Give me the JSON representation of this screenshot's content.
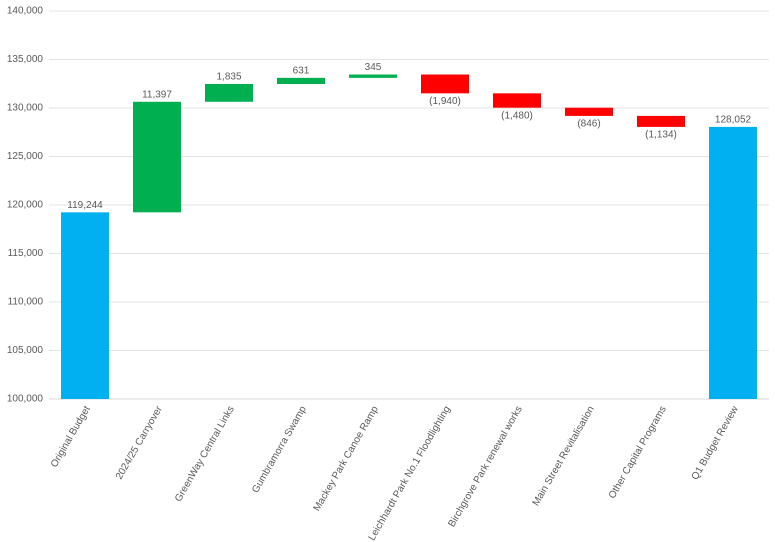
{
  "chart_data": {
    "type": "waterfall",
    "categories": [
      "Original Budget",
      "2024/25 Carryover",
      "GreenWay Central Links",
      "Gumbramorra Swamp",
      "Mackey Park Canoe Ramp",
      "Leichhardt Park No.1 Floodlighting",
      "Birchgrove Park renewal works",
      "Main Street Revitalisation",
      "Other Capital Programs",
      "Q1 Budget Review"
    ],
    "values": [
      119244,
      11397,
      1835,
      631,
      345,
      -1940,
      -1480,
      -846,
      -1134,
      128052
    ],
    "value_labels": [
      "119,244",
      "11,397",
      "1,835",
      "631",
      "345",
      "(1,940)",
      "(1,480)",
      "(846)",
      "(1,134)",
      "128,052"
    ],
    "total_color": "#00b0f0",
    "increase_color": "#00b050",
    "decrease_color": "#ff0000",
    "ylim": [
      100000,
      140000
    ],
    "yticks": [
      {
        "value": 100000,
        "label": "100,000"
      },
      {
        "value": 105000,
        "label": "105,000"
      },
      {
        "value": 110000,
        "label": "110,000"
      },
      {
        "value": 115000,
        "label": "115,000"
      },
      {
        "value": 120000,
        "label": "120,000"
      },
      {
        "value": 125000,
        "label": "125,000"
      },
      {
        "value": 130000,
        "label": "130,000"
      },
      {
        "value": 135000,
        "label": "135,000"
      },
      {
        "value": 140000,
        "label": "140,000"
      }
    ],
    "grid": true
  }
}
